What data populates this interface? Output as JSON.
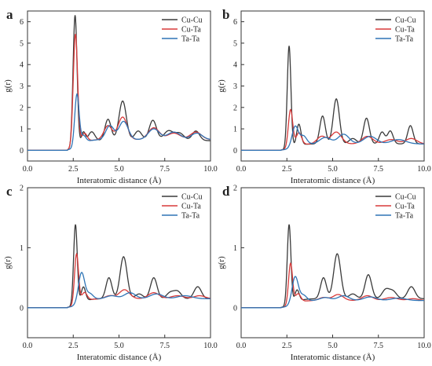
{
  "figure": {
    "series_colors": {
      "Cu-Cu": "#3a3a3a",
      "Cu-Ta": "#d83a3a",
      "Ta-Ta": "#2f74b5"
    }
  },
  "chart_data": [
    {
      "panel_label": "a",
      "type": "line",
      "xlabel": "Interatomic distance (Å)",
      "ylabel": "g(r)",
      "xlim": [
        0,
        10
      ],
      "ylim": [
        -0.5,
        6.5
      ],
      "x_ticks": [
        "0.0",
        "2.5",
        "5.0",
        "7.5",
        "10.0"
      ],
      "y_ticks": [
        "0",
        "1",
        "2",
        "3",
        "4",
        "5",
        "6"
      ],
      "y_tick_values": [
        0,
        1,
        2,
        3,
        4,
        5,
        6
      ],
      "legend": {
        "position": "top-right",
        "entries": [
          "Cu-Cu",
          "Cu-Ta",
          "Ta-Ta"
        ]
      },
      "series": [
        {
          "name": "Cu-Cu",
          "color": "#3a3a3a",
          "peaks": [
            [
              2.6,
              6.2,
              0.11
            ],
            [
              3.05,
              0.55,
              0.11
            ],
            [
              3.5,
              0.45,
              0.18
            ],
            [
              4.4,
              1.0,
              0.17
            ],
            [
              5.2,
              1.85,
              0.2
            ],
            [
              6.05,
              0.45,
              0.2
            ],
            [
              6.85,
              0.95,
              0.2
            ],
            [
              7.7,
              0.45,
              0.25
            ],
            [
              8.3,
              0.35,
              0.25
            ],
            [
              9.2,
              0.45,
              0.2
            ]
          ],
          "baseline": 0.45
        },
        {
          "name": "Cu-Ta",
          "color": "#d83a3a",
          "peaks": [
            [
              2.62,
              5.3,
              0.12
            ],
            [
              3.1,
              0.45,
              0.15
            ],
            [
              4.4,
              0.65,
              0.22
            ],
            [
              5.2,
              1.05,
              0.25
            ],
            [
              6.9,
              0.55,
              0.3
            ],
            [
              8.0,
              0.3,
              0.35
            ],
            [
              9.2,
              0.35,
              0.3
            ]
          ],
          "baseline": 0.5
        },
        {
          "name": "Ta-Ta",
          "color": "#2f74b5",
          "peaks": [
            [
              2.7,
              2.45,
              0.12
            ],
            [
              3.05,
              0.35,
              0.14
            ],
            [
              4.5,
              0.65,
              0.22
            ],
            [
              5.25,
              0.85,
              0.25
            ],
            [
              6.9,
              0.5,
              0.3
            ],
            [
              8.0,
              0.35,
              0.35
            ],
            [
              9.25,
              0.3,
              0.3
            ]
          ],
          "baseline": 0.5
        }
      ]
    },
    {
      "panel_label": "b",
      "type": "line",
      "xlabel": "Interatomic distance (Å)",
      "ylabel": "g(r)",
      "xlim": [
        0,
        10
      ],
      "ylim": [
        -0.5,
        6.5
      ],
      "x_ticks": [
        "0.0",
        "2.5",
        "5.0",
        "7.5",
        "10.0"
      ],
      "y_ticks": [
        "0",
        "1",
        "2",
        "3",
        "4",
        "5",
        "6"
      ],
      "y_tick_values": [
        0,
        1,
        2,
        3,
        4,
        5,
        6
      ],
      "legend": {
        "position": "top-right",
        "entries": [
          "Cu-Cu",
          "Cu-Ta",
          "Ta-Ta"
        ]
      },
      "series": [
        {
          "name": "Cu-Cu",
          "color": "#3a3a3a",
          "peaks": [
            [
              2.62,
              4.8,
              0.1
            ],
            [
              3.15,
              1.0,
              0.12
            ],
            [
              4.45,
              1.3,
              0.15
            ],
            [
              5.2,
              2.1,
              0.17
            ],
            [
              6.1,
              0.25,
              0.2
            ],
            [
              6.85,
              1.2,
              0.16
            ],
            [
              7.7,
              0.55,
              0.15
            ],
            [
              8.15,
              0.6,
              0.15
            ],
            [
              9.25,
              0.85,
              0.15
            ]
          ],
          "baseline": 0.3
        },
        {
          "name": "Cu-Ta",
          "color": "#d83a3a",
          "peaks": [
            [
              2.7,
              1.8,
              0.12
            ],
            [
              3.15,
              0.6,
              0.15
            ],
            [
              4.4,
              0.35,
              0.25
            ],
            [
              5.2,
              0.55,
              0.28
            ],
            [
              6.9,
              0.35,
              0.3
            ],
            [
              8.2,
              0.2,
              0.35
            ],
            [
              9.3,
              0.25,
              0.3
            ]
          ],
          "baseline": 0.3
        },
        {
          "name": "Ta-Ta",
          "color": "#2f74b5",
          "peaks": [
            [
              2.95,
              0.95,
              0.17
            ],
            [
              3.4,
              0.4,
              0.18
            ],
            [
              4.6,
              0.3,
              0.3
            ],
            [
              5.6,
              0.45,
              0.3
            ],
            [
              7.05,
              0.35,
              0.35
            ],
            [
              8.6,
              0.2,
              0.4
            ]
          ],
          "baseline": 0.3
        }
      ]
    },
    {
      "panel_label": "c",
      "type": "line",
      "xlabel": "Interatomic distance (Å)",
      "ylabel": "g(r)",
      "xlim": [
        0,
        10
      ],
      "ylim": [
        -0.5,
        2.0
      ],
      "x_ticks": [
        "0.0",
        "2.5",
        "5.0",
        "7.5",
        "10.0"
      ],
      "y_ticks": [
        "0",
        "1",
        "2"
      ],
      "y_tick_values": [
        0,
        1,
        2
      ],
      "legend": {
        "position": "top-right",
        "entries": [
          "Cu-Cu",
          "Cu-Ta",
          "Ta-Ta"
        ]
      },
      "series": [
        {
          "name": "Cu-Cu",
          "color": "#3a3a3a",
          "peaks": [
            [
              2.62,
              1.35,
              0.1
            ],
            [
              3.05,
              0.25,
              0.12
            ],
            [
              4.45,
              0.35,
              0.16
            ],
            [
              5.25,
              0.7,
              0.19
            ],
            [
              6.1,
              0.08,
              0.2
            ],
            [
              6.9,
              0.35,
              0.18
            ],
            [
              7.8,
              0.1,
              0.2
            ],
            [
              8.2,
              0.12,
              0.2
            ],
            [
              9.3,
              0.2,
              0.2
            ]
          ],
          "baseline": 0.15
        },
        {
          "name": "Cu-Ta",
          "color": "#d83a3a",
          "peaks": [
            [
              2.68,
              0.85,
              0.11
            ],
            [
              3.1,
              0.15,
              0.15
            ],
            [
              4.5,
              0.05,
              0.25
            ],
            [
              5.3,
              0.15,
              0.28
            ],
            [
              6.9,
              0.1,
              0.3
            ],
            [
              8.2,
              0.05,
              0.35
            ],
            [
              9.4,
              0.05,
              0.3
            ]
          ],
          "baseline": 0.15
        },
        {
          "name": "Ta-Ta",
          "color": "#2f74b5",
          "peaks": [
            [
              2.95,
              0.5,
              0.17
            ],
            [
              3.4,
              0.1,
              0.18
            ],
            [
              4.6,
              0.05,
              0.3
            ],
            [
              5.6,
              0.1,
              0.3
            ],
            [
              7.05,
              0.08,
              0.35
            ],
            [
              8.6,
              0.05,
              0.4
            ]
          ],
          "baseline": 0.15
        }
      ]
    },
    {
      "panel_label": "d",
      "type": "line",
      "xlabel": "Interatomic distance (Å)",
      "ylabel": "g(r)",
      "xlim": [
        0,
        10
      ],
      "ylim": [
        -0.5,
        2.0
      ],
      "x_ticks": [
        "0.0",
        "2.5",
        "5.0",
        "7.5",
        "10.0"
      ],
      "y_ticks": [
        "0",
        "1",
        "2"
      ],
      "y_tick_values": [
        0,
        1,
        2
      ],
      "legend": {
        "position": "top-right",
        "entries": [
          "Cu-Cu",
          "Cu-Ta",
          "Ta-Ta"
        ]
      },
      "series": [
        {
          "name": "Cu-Cu",
          "color": "#3a3a3a",
          "peaks": [
            [
              2.62,
              1.35,
              0.1
            ],
            [
              3.05,
              0.2,
              0.12
            ],
            [
              4.5,
              0.35,
              0.16
            ],
            [
              5.25,
              0.75,
              0.19
            ],
            [
              6.1,
              0.08,
              0.2
            ],
            [
              6.95,
              0.4,
              0.18
            ],
            [
              7.9,
              0.15,
              0.2
            ],
            [
              8.3,
              0.12,
              0.2
            ],
            [
              9.3,
              0.2,
              0.2
            ]
          ],
          "baseline": 0.15
        },
        {
          "name": "Cu-Ta",
          "color": "#d83a3a",
          "peaks": [
            [
              2.7,
              0.7,
              0.11
            ],
            [
              3.1,
              0.15,
              0.15
            ],
            [
              4.5,
              0.05,
              0.25
            ],
            [
              5.3,
              0.1,
              0.28
            ],
            [
              6.9,
              0.08,
              0.3
            ],
            [
              8.2,
              0.05,
              0.35
            ],
            [
              9.4,
              0.03,
              0.3
            ]
          ],
          "baseline": 0.12
        },
        {
          "name": "Ta-Ta",
          "color": "#2f74b5",
          "peaks": [
            [
              2.95,
              0.45,
              0.17
            ],
            [
              3.4,
              0.1,
              0.18
            ],
            [
              4.6,
              0.05,
              0.3
            ],
            [
              5.6,
              0.08,
              0.3
            ],
            [
              7.05,
              0.06,
              0.35
            ],
            [
              8.6,
              0.04,
              0.4
            ]
          ],
          "baseline": 0.12
        }
      ]
    }
  ]
}
